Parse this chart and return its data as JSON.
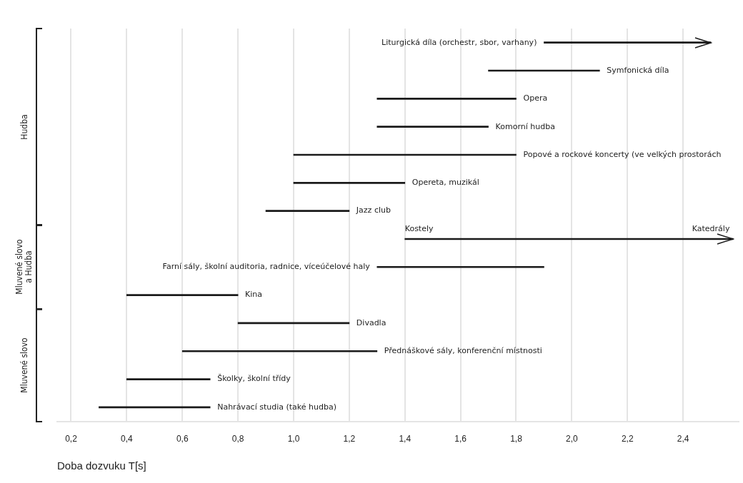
{
  "chart_data": {
    "type": "bar",
    "orientation": "horizontal",
    "xlabel": "Doba dozvuku T[s]",
    "tick_labels": "x",
    "grid": "x",
    "color": "#1a1a1a",
    "categories": [
      "Liturgická díla (orchestr, sbor, varhany)",
      "Symfonická díla",
      "Opera",
      "Komorní hudba",
      "Popové a rockové koncerty (ve velkých prostorách",
      "Opereta, muzikál",
      "Jazz club",
      "Kostely",
      "Farní sály, školní auditoria, radnice, víceúčelové haly",
      "Kina",
      "Divadla",
      "Přednáškové sály, konferenční místnosti",
      "Školky, školní třídy",
      "Nahrávací studia (také hudba)"
    ],
    "base": [
      1.9,
      1.7,
      1.3,
      1.3,
      1.0,
      1.0,
      0.9,
      1.4,
      1.3,
      0.4,
      0.8,
      0.6,
      0.4,
      0.3
    ],
    "values": [
      0.6,
      0.4,
      0.5,
      0.4,
      0.8,
      0.4,
      0.3,
      1.18,
      0.6,
      0.4,
      0.4,
      0.7,
      0.3,
      0.4
    ],
    "xlim": [
      0.15,
      2.6
    ],
    "xticks": [
      {
        "value": 0.2,
        "label": "0,2"
      },
      {
        "value": 0.4,
        "label": "0,4"
      },
      {
        "value": 0.6,
        "label": "0,6"
      },
      {
        "value": 0.8,
        "label": "0,8"
      },
      {
        "value": 1.0,
        "label": "1,0"
      },
      {
        "value": 1.2,
        "label": "1,2"
      },
      {
        "value": 1.4,
        "label": "1,4"
      },
      {
        "value": 1.6,
        "label": "1,6"
      },
      {
        "value": 1.8,
        "label": "1,8"
      },
      {
        "value": 2.0,
        "label": "2,0"
      },
      {
        "value": 2.2,
        "label": "2,2"
      },
      {
        "value": 2.4,
        "label": "2,4"
      }
    ],
    "annotations": [
      {
        "text": "Katedrály",
        "x": 2.5,
        "y": "Kostely"
      },
      "Hudba",
      "Mluvené slovo\na Hudba",
      "Mluvené slovo"
    ]
  }
}
